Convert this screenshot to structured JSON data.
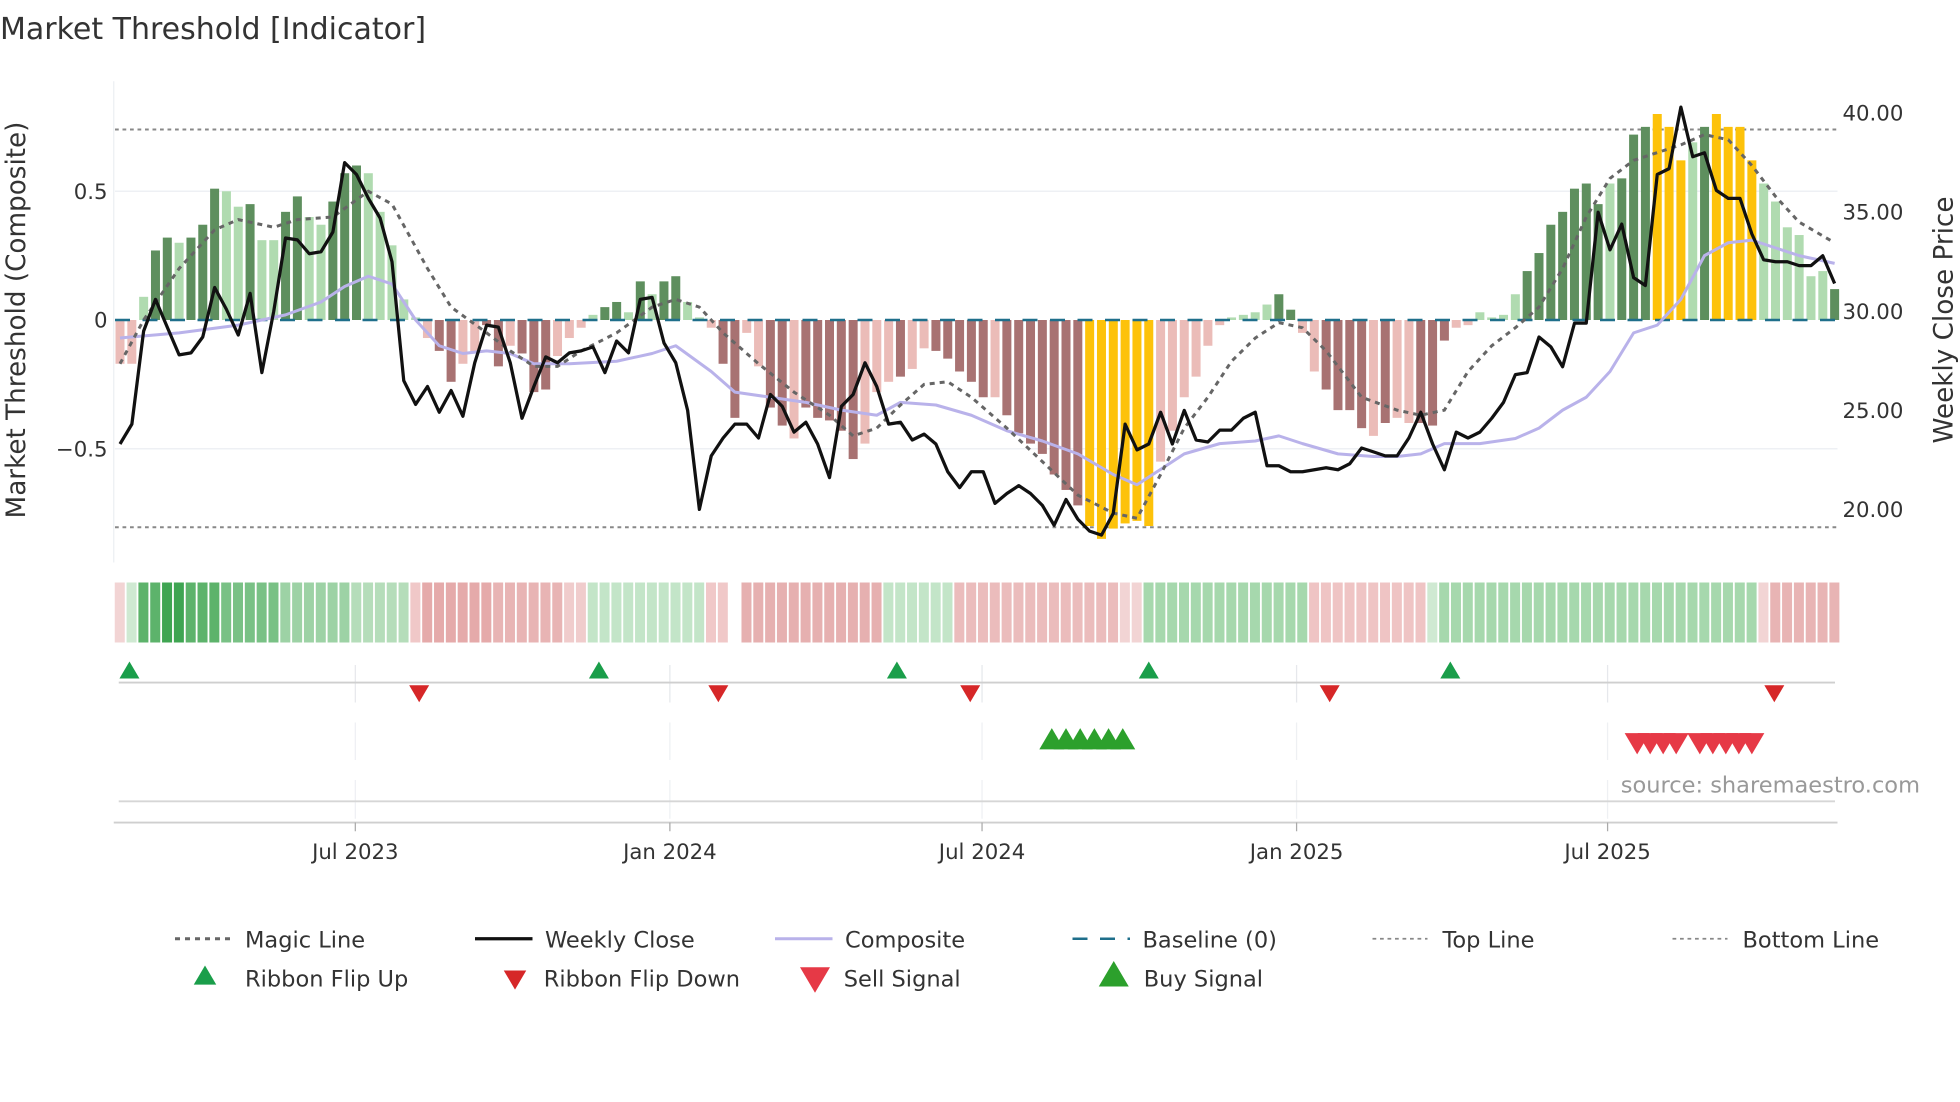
{
  "chart_data": {
    "type": "bar",
    "title": "Market Threshold [Indicator]",
    "ylabel": "Market Threshold (Composite)",
    "y2label": "Weekly Close Price",
    "ylim": [
      -0.92,
      0.93
    ],
    "y2lim": [
      15.2,
      46
    ],
    "yticks": [
      {
        "v": 0.5,
        "label": "0.5"
      },
      {
        "v": 0,
        "label": "0"
      },
      {
        "v": -0.5,
        "label": "−0.5"
      }
    ],
    "y2ticks": [
      {
        "v": 40,
        "label": "40.00"
      },
      {
        "v": 35,
        "label": "35.00"
      },
      {
        "v": 30,
        "label": "30.00"
      },
      {
        "v": 25,
        "label": "25.00"
      },
      {
        "v": 20,
        "label": "20.00"
      }
    ],
    "xticks": [
      {
        "week": 19.9,
        "label": "Jul 2023"
      },
      {
        "week": 46.5,
        "label": "Jan 2024"
      },
      {
        "week": 72.9,
        "label": "Jul 2024"
      },
      {
        "week": 99.5,
        "label": "Jan 2025"
      },
      {
        "week": 125.8,
        "label": "Jul 2025"
      }
    ],
    "top_line": 0.74,
    "bottom_line": -0.805,
    "baseline": 0,
    "colors": {
      "dark_green": "#5e8f5e",
      "light_green": "#b0dbb0",
      "dark_red": "#a87272",
      "light_red": "#ebbcb8",
      "yellow": "#fdc20a",
      "close": "#111111",
      "composite": "#b9b2ea",
      "magic": "#666666",
      "baseline": "#1f6f8b",
      "flip_up": "#1a9e4a",
      "flip_down": "#d62728",
      "sell": "#e63946",
      "buy": "#2ca02c"
    },
    "composite_bars": [
      -0.17,
      -0.17,
      0.09,
      0.27,
      0.32,
      0.3,
      0.32,
      0.37,
      0.51,
      0.5,
      0.44,
      0.45,
      0.31,
      0.31,
      0.42,
      0.48,
      0.4,
      0.37,
      0.46,
      0.57,
      0.6,
      0.57,
      0.42,
      0.29,
      0.08,
      0.01,
      -0.07,
      -0.12,
      -0.24,
      -0.17,
      -0.13,
      -0.02,
      -0.18,
      -0.1,
      -0.13,
      -0.28,
      -0.27,
      -0.14,
      -0.07,
      -0.03,
      0.02,
      0.05,
      0.07,
      0.03,
      0.15,
      0.1,
      0.15,
      0.17,
      0.07,
      0.01,
      -0.03,
      -0.17,
      -0.38,
      -0.05,
      -0.18,
      -0.34,
      -0.41,
      -0.46,
      -0.34,
      -0.38,
      -0.39,
      -0.43,
      -0.54,
      -0.48,
      -0.28,
      -0.24,
      -0.22,
      -0.19,
      -0.11,
      -0.12,
      -0.15,
      -0.2,
      -0.24,
      -0.3,
      -0.3,
      -0.37,
      -0.44,
      -0.48,
      -0.52,
      -0.6,
      -0.66,
      -0.72,
      -0.8,
      -0.85,
      -0.81,
      -0.79,
      -0.78,
      -0.8,
      -0.55,
      -0.43,
      -0.3,
      -0.22,
      -0.1,
      -0.02,
      0.01,
      0.02,
      0.03,
      0.06,
      0.1,
      0.04,
      -0.05,
      -0.2,
      -0.27,
      -0.35,
      -0.35,
      -0.42,
      -0.45,
      -0.4,
      -0.38,
      -0.4,
      -0.4,
      -0.41,
      -0.08,
      -0.03,
      -0.02,
      0.03,
      0.01,
      0.02,
      0.1,
      0.19,
      0.26,
      0.37,
      0.42,
      0.51,
      0.53,
      0.45,
      0.53,
      0.55,
      0.72,
      0.75,
      0.8,
      0.75,
      0.62,
      0.69,
      0.75,
      0.8,
      0.75,
      0.75,
      0.62,
      0.53,
      0.46,
      0.36,
      0.33,
      0.17,
      0.19,
      0.12
    ],
    "bar_shades": "LLLDDLDDDLLDLLDDLLDDDLLLLLLDDLLDDLDDDLLLLDDLDLDDLLLDDLLDDLDDDDDLLLDLLDDDDDLDDDDDDDYYYYYYLLLLLLLLLLDDLLDDDDLDLLDDDLLLLLLDDDDDDDLDDDYYYLDYYYYLLLLLLDL",
    "weekly_close": [
      23.3,
      24.3,
      29.0,
      30.6,
      29.2,
      27.8,
      27.9,
      28.7,
      31.2,
      30.1,
      28.8,
      30.9,
      26.9,
      30.0,
      33.7,
      33.6,
      32.9,
      33.0,
      34.0,
      37.5,
      36.9,
      35.7,
      34.7,
      32.5,
      26.5,
      25.3,
      26.2,
      24.9,
      26.0,
      24.7,
      27.4,
      29.3,
      29.2,
      27.4,
      24.6,
      26.2,
      27.7,
      27.4,
      27.9,
      28.0,
      28.2,
      26.9,
      28.5,
      27.9,
      30.6,
      30.7,
      28.4,
      27.4,
      25.0,
      20.0,
      22.7,
      23.6,
      24.3,
      24.3,
      23.6,
      25.8,
      25.2,
      23.9,
      24.4,
      23.3,
      21.6,
      25.2,
      25.8,
      27.4,
      26.2,
      24.3,
      24.4,
      23.5,
      23.8,
      23.3,
      21.9,
      21.1,
      21.9,
      21.9,
      20.3,
      20.8,
      21.2,
      20.8,
      20.2,
      19.2,
      20.5,
      19.5,
      18.9,
      18.7,
      19.8,
      24.3,
      23.0,
      23.3,
      24.9,
      23.3,
      25.0,
      23.5,
      23.4,
      24.0,
      24.0,
      24.6,
      24.9,
      22.2,
      22.2,
      21.9,
      21.9,
      22.0,
      22.1,
      22.0,
      22.3,
      23.1,
      22.9,
      22.7,
      22.7,
      23.6,
      24.9,
      23.3,
      22.0,
      23.9,
      23.6,
      23.9,
      24.6,
      25.4,
      26.8,
      26.9,
      28.7,
      28.2,
      27.2,
      29.4,
      29.4,
      35.0,
      33.1,
      34.4,
      31.7,
      31.3,
      36.9,
      37.2,
      40.3,
      37.8,
      38.0,
      36.1,
      35.7,
      35.7,
      33.9,
      32.6,
      32.5,
      32.5,
      32.3,
      32.3,
      32.8,
      31.4
    ],
    "magic_line": [
      [
        0,
        -0.17
      ],
      [
        2,
        0
      ],
      [
        5,
        0.2
      ],
      [
        8,
        0.35
      ],
      [
        10,
        0.39
      ],
      [
        13,
        0.36
      ],
      [
        15,
        0.39
      ],
      [
        18,
        0.4
      ],
      [
        21,
        0.5
      ],
      [
        23,
        0.45
      ],
      [
        26,
        0.2
      ],
      [
        28,
        0.05
      ],
      [
        31,
        -0.05
      ],
      [
        33,
        -0.12
      ],
      [
        35,
        -0.18
      ],
      [
        37,
        -0.18
      ],
      [
        39,
        -0.12
      ],
      [
        42,
        -0.05
      ],
      [
        45,
        0.05
      ],
      [
        47,
        0.08
      ],
      [
        49,
        0.05
      ],
      [
        51,
        -0.05
      ],
      [
        54,
        -0.17
      ],
      [
        57,
        -0.28
      ],
      [
        60,
        -0.37
      ],
      [
        62,
        -0.45
      ],
      [
        64,
        -0.42
      ],
      [
        66,
        -0.33
      ],
      [
        68,
        -0.25
      ],
      [
        70,
        -0.24
      ],
      [
        72,
        -0.3
      ],
      [
        75,
        -0.42
      ],
      [
        78,
        -0.55
      ],
      [
        81,
        -0.68
      ],
      [
        84,
        -0.75
      ],
      [
        86,
        -0.77
      ],
      [
        88,
        -0.6
      ],
      [
        90,
        -0.42
      ],
      [
        92,
        -0.3
      ],
      [
        94,
        -0.16
      ],
      [
        96,
        -0.07
      ],
      [
        98,
        -0.01
      ],
      [
        100,
        -0.03
      ],
      [
        102,
        -0.12
      ],
      [
        105,
        -0.3
      ],
      [
        108,
        -0.35
      ],
      [
        110,
        -0.37
      ],
      [
        112,
        -0.35
      ],
      [
        114,
        -0.2
      ],
      [
        116,
        -0.1
      ],
      [
        118,
        -0.03
      ],
      [
        120,
        0.05
      ],
      [
        122,
        0.2
      ],
      [
        124,
        0.4
      ],
      [
        126,
        0.55
      ],
      [
        128,
        0.62
      ],
      [
        130,
        0.65
      ],
      [
        132,
        0.68
      ],
      [
        134,
        0.72
      ],
      [
        136,
        0.7
      ],
      [
        138,
        0.6
      ],
      [
        140,
        0.48
      ],
      [
        142,
        0.38
      ],
      [
        145,
        0.3
      ]
    ],
    "composite_line": [
      [
        0,
        -0.07
      ],
      [
        5,
        -0.05
      ],
      [
        10,
        -0.02
      ],
      [
        14,
        0.02
      ],
      [
        17,
        0.07
      ],
      [
        19,
        0.13
      ],
      [
        21,
        0.17
      ],
      [
        23,
        0.14
      ],
      [
        25,
        0.0
      ],
      [
        27,
        -0.1
      ],
      [
        29,
        -0.13
      ],
      [
        31,
        -0.12
      ],
      [
        33,
        -0.13
      ],
      [
        35,
        -0.17
      ],
      [
        38,
        -0.17
      ],
      [
        42,
        -0.16
      ],
      [
        45,
        -0.13
      ],
      [
        47,
        -0.1
      ],
      [
        50,
        -0.2
      ],
      [
        52,
        -0.28
      ],
      [
        55,
        -0.3
      ],
      [
        58,
        -0.32
      ],
      [
        61,
        -0.35
      ],
      [
        64,
        -0.37
      ],
      [
        66,
        -0.32
      ],
      [
        69,
        -0.33
      ],
      [
        72,
        -0.37
      ],
      [
        75,
        -0.43
      ],
      [
        78,
        -0.47
      ],
      [
        81,
        -0.52
      ],
      [
        84,
        -0.6
      ],
      [
        86,
        -0.64
      ],
      [
        88,
        -0.58
      ],
      [
        90,
        -0.52
      ],
      [
        93,
        -0.48
      ],
      [
        96,
        -0.47
      ],
      [
        98,
        -0.45
      ],
      [
        100,
        -0.48
      ],
      [
        103,
        -0.52
      ],
      [
        106,
        -0.53
      ],
      [
        108,
        -0.53
      ],
      [
        110,
        -0.52
      ],
      [
        112,
        -0.48
      ],
      [
        115,
        -0.48
      ],
      [
        118,
        -0.46
      ],
      [
        120,
        -0.42
      ],
      [
        122,
        -0.35
      ],
      [
        124,
        -0.3
      ],
      [
        126,
        -0.2
      ],
      [
        128,
        -0.05
      ],
      [
        130,
        -0.02
      ],
      [
        132,
        0.08
      ],
      [
        134,
        0.25
      ],
      [
        136,
        0.3
      ],
      [
        138,
        0.31
      ],
      [
        140,
        0.28
      ],
      [
        142,
        0.25
      ],
      [
        145,
        0.22
      ]
    ],
    "ribbon_segments": [
      [
        0,
        0,
        "#f2d4d4"
      ],
      [
        1,
        1,
        "#cfe9d2"
      ],
      [
        2,
        3,
        "#5db36b"
      ],
      [
        4,
        5,
        "#3fa552"
      ],
      [
        6,
        8,
        "#5db36b"
      ],
      [
        9,
        13,
        "#79c185"
      ],
      [
        14,
        19,
        "#9dd2a5"
      ],
      [
        20,
        24,
        "#b5ddba"
      ],
      [
        25,
        25,
        "#f0c8c8"
      ],
      [
        26,
        31,
        "#e5aaaa"
      ],
      [
        32,
        37,
        "#e8b4b4"
      ],
      [
        38,
        39,
        "#f0cccc"
      ],
      [
        40,
        49,
        "#c3e5c8"
      ],
      [
        50,
        51,
        "#f0c8c8"
      ],
      [
        53,
        64,
        "#e6b0b0"
      ],
      [
        65,
        70,
        "#c3e5c8"
      ],
      [
        71,
        84,
        "#ebbcbc"
      ],
      [
        85,
        86,
        "#f2d4d4"
      ],
      [
        87,
        100,
        "#a6d8ad"
      ],
      [
        101,
        110,
        "#efc4c4"
      ],
      [
        111,
        111,
        "#cfe9d2"
      ],
      [
        112,
        138,
        "#a6d8ad"
      ],
      [
        139,
        139,
        "#f2d4d4"
      ],
      [
        140,
        145,
        "#e8b4b4"
      ]
    ],
    "ribbon_flip_up": [
      0.8,
      40.5,
      65.7,
      87.0,
      112.5
    ],
    "ribbon_flip_down": [
      25.3,
      50.6,
      71.9,
      102.3,
      139.9
    ],
    "buy_signals": [
      78.8,
      80.0,
      81.2,
      82.4,
      83.6,
      84.8
    ],
    "sell_signals": [
      128.3,
      129.4,
      130.5,
      131.6,
      133.6,
      134.7,
      135.8,
      136.9,
      138.0
    ],
    "legend": [
      {
        "key": "magic",
        "label": "Magic Line"
      },
      {
        "key": "close",
        "label": "Weekly Close"
      },
      {
        "key": "composite",
        "label": "Composite"
      },
      {
        "key": "baseline",
        "label": "Baseline (0)"
      },
      {
        "key": "top",
        "label": "Top Line"
      },
      {
        "key": "bottom",
        "label": "Bottom Line"
      },
      {
        "key": "flip_up",
        "label": "Ribbon Flip Up"
      },
      {
        "key": "flip_down",
        "label": "Ribbon Flip Down"
      },
      {
        "key": "sell",
        "label": "Sell Signal"
      },
      {
        "key": "buy",
        "label": "Buy Signal"
      }
    ],
    "source": "source: sharemaestro.com"
  }
}
